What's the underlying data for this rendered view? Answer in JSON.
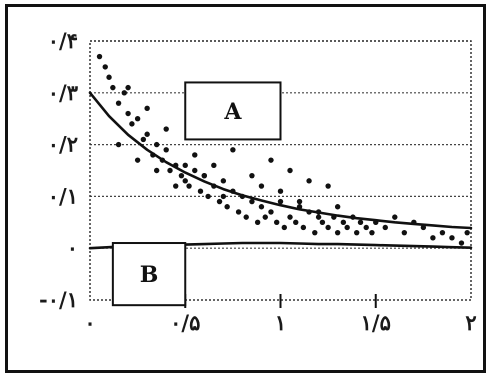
{
  "chart_data": {
    "type": "scatter",
    "title": "",
    "xlabel": "",
    "ylabel": "",
    "xlim": [
      0,
      2
    ],
    "ylim": [
      -0.1,
      0.4
    ],
    "x_ticks": [
      0,
      0.5,
      1,
      1.5,
      2
    ],
    "x_tick_labels": [
      "٠",
      "٠/۵",
      "١",
      "١/۵",
      "٢"
    ],
    "y_ticks": [
      0.4,
      0.3,
      0.2,
      0.1,
      0,
      -0.1
    ],
    "y_tick_labels": [
      "٠/۴",
      "٠/٣",
      "٠/٢",
      "٠/١",
      "٠",
      "-٠/١"
    ],
    "grid": true,
    "series": [
      {
        "kind": "points",
        "x": [
          0.05,
          0.08,
          0.1,
          0.12,
          0.15,
          0.18,
          0.2,
          0.22,
          0.25,
          0.28,
          0.3,
          0.33,
          0.35,
          0.38,
          0.4,
          0.42,
          0.45,
          0.48,
          0.5,
          0.52,
          0.55,
          0.58,
          0.6,
          0.62,
          0.65,
          0.68,
          0.7,
          0.72,
          0.75,
          0.78,
          0.8,
          0.82,
          0.85,
          0.88,
          0.9,
          0.92,
          0.95,
          0.98,
          1.0,
          1.02,
          1.05,
          1.08,
          1.1,
          1.12,
          1.15,
          1.18,
          1.2,
          1.22,
          1.25,
          1.28,
          1.3,
          1.33,
          1.35,
          1.38,
          1.4,
          1.42,
          1.45,
          1.48,
          1.5,
          1.55,
          1.6,
          1.65,
          1.7,
          1.75,
          1.8,
          1.85,
          1.9,
          1.95,
          1.98,
          0.15,
          0.25,
          0.35,
          0.45,
          0.55,
          0.65,
          0.75,
          0.85,
          0.95,
          1.05,
          1.15,
          1.25,
          0.2,
          0.3,
          0.4,
          0.5,
          0.6,
          0.7,
          0.9,
          1.0,
          1.1,
          1.2,
          1.3
        ],
        "y": [
          0.37,
          0.35,
          0.33,
          0.31,
          0.28,
          0.3,
          0.26,
          0.24,
          0.25,
          0.21,
          0.22,
          0.18,
          0.2,
          0.17,
          0.19,
          0.15,
          0.16,
          0.14,
          0.13,
          0.12,
          0.15,
          0.11,
          0.14,
          0.1,
          0.12,
          0.09,
          0.13,
          0.08,
          0.11,
          0.07,
          0.1,
          0.06,
          0.09,
          0.05,
          0.08,
          0.06,
          0.07,
          0.05,
          0.09,
          0.04,
          0.06,
          0.05,
          0.08,
          0.04,
          0.07,
          0.03,
          0.06,
          0.05,
          0.04,
          0.06,
          0.03,
          0.05,
          0.04,
          0.06,
          0.03,
          0.05,
          0.04,
          0.03,
          0.05,
          0.04,
          0.06,
          0.03,
          0.05,
          0.04,
          0.02,
          0.03,
          0.02,
          0.01,
          0.03,
          0.2,
          0.17,
          0.15,
          0.12,
          0.18,
          0.16,
          0.19,
          0.14,
          0.17,
          0.15,
          0.13,
          0.12,
          0.31,
          0.27,
          0.23,
          0.16,
          0.14,
          0.1,
          0.12,
          0.11,
          0.09,
          0.07,
          0.08
        ]
      },
      {
        "kind": "curve",
        "x": [
          0,
          0.1,
          0.2,
          0.3,
          0.4,
          0.5,
          0.6,
          0.7,
          0.8,
          0.9,
          1.0,
          1.1,
          1.2,
          1.3,
          1.4,
          1.5,
          1.6,
          1.7,
          1.8,
          1.9,
          2.0
        ],
        "y": [
          0.3,
          0.255,
          0.219,
          0.19,
          0.166,
          0.146,
          0.129,
          0.114,
          0.102,
          0.092,
          0.083,
          0.075,
          0.069,
          0.063,
          0.058,
          0.054,
          0.05,
          0.047,
          0.044,
          0.041,
          0.039
        ]
      },
      {
        "kind": "curve",
        "x": [
          0,
          0.1,
          0.2,
          0.3,
          0.4,
          0.5,
          0.6,
          0.7,
          0.8,
          0.9,
          1.0,
          1.1,
          1.2,
          1.3,
          1.4,
          1.5,
          1.6,
          1.7,
          1.8,
          1.9,
          2.0
        ],
        "y": [
          0,
          0.002,
          0.004,
          0.005,
          0.006,
          0.007,
          0.008,
          0.009,
          0.01,
          0.01,
          0.01,
          0.009,
          0.008,
          0.008,
          0.007,
          0.006,
          0.005,
          0.004,
          0.003,
          0.002,
          0.001
        ]
      }
    ],
    "annotations": [
      {
        "label": "A",
        "x0": 0.5,
        "x1": 1.0,
        "y0": 0.21,
        "y1": 0.32
      },
      {
        "label": "B",
        "x0": 0.12,
        "x1": 0.5,
        "y0": -0.11,
        "y1": 0.01
      }
    ]
  }
}
